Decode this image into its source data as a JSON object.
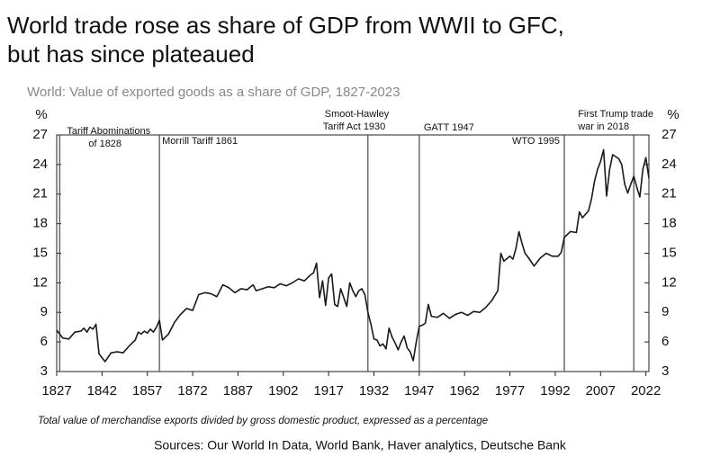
{
  "chart_data": {
    "type": "line",
    "title": [
      "World trade rose as share of GDP from WWII to GFC,",
      "but has since plateaued"
    ],
    "subtitle": "World: Value of exported goods as a share of GDP, 1827-2023",
    "y_label": "%",
    "y2_label": "%",
    "footnote": "Total value of merchandise exports divided by gross domestic product, expressed as a percentage",
    "source": "Sources: Our World In Data, World Bank, Haver analytics, Deutsche Bank",
    "xlim": [
      1827,
      2023
    ],
    "xticks": [
      1827,
      1842,
      1857,
      1872,
      1887,
      1902,
      1917,
      1932,
      1947,
      1962,
      1977,
      1992,
      2007,
      2022
    ],
    "ylim": [
      3,
      27
    ],
    "yticks": [
      3,
      6,
      9,
      12,
      15,
      18,
      21,
      24,
      27
    ],
    "y2lim": [
      3,
      27
    ],
    "y2ticks": [
      3,
      6,
      9,
      12,
      15,
      18,
      21,
      24,
      27
    ],
    "color": "#1a1a1a",
    "annotations": [
      {
        "text": [
          "Tariff Abominations",
          "of 1828"
        ],
        "x": 1828
      },
      {
        "text": [
          "Morrill Tariff 1861"
        ],
        "x": 1861
      },
      {
        "text": [
          "Smoot-Hawley",
          "Tariff Act 1930"
        ],
        "x": 1930
      },
      {
        "text": [
          "GATT 1947"
        ],
        "x": 1947
      },
      {
        "text": [
          "WTO 1995"
        ],
        "x": 1995
      },
      {
        "text": [
          "First Trump trade",
          "war in 2018"
        ],
        "x": 2018
      }
    ],
    "x": [
      1827,
      1829,
      1831,
      1833,
      1835,
      1836,
      1837,
      1838,
      1839,
      1840,
      1841,
      1843,
      1845,
      1847,
      1849,
      1851,
      1853,
      1854,
      1855,
      1856,
      1857,
      1858,
      1859,
      1860,
      1861,
      1862,
      1864,
      1866,
      1868,
      1870,
      1872,
      1874,
      1876,
      1878,
      1880,
      1882,
      1884,
      1886,
      1888,
      1890,
      1892,
      1893,
      1895,
      1897,
      1899,
      1901,
      1903,
      1905,
      1907,
      1909,
      1911,
      1912,
      1913,
      1914,
      1915,
      1916,
      1917,
      1918,
      1919,
      1920,
      1921,
      1922,
      1923,
      1924,
      1925,
      1926,
      1927,
      1928,
      1929,
      1930,
      1931,
      1932,
      1933,
      1934,
      1935,
      1936,
      1937,
      1938,
      1939,
      1940,
      1941,
      1942,
      1943,
      1944,
      1945,
      1946,
      1947,
      1948,
      1949,
      1950,
      1951,
      1953,
      1955,
      1957,
      1959,
      1961,
      1963,
      1965,
      1967,
      1969,
      1971,
      1973,
      1974,
      1975,
      1977,
      1978,
      1979,
      1980,
      1981,
      1982,
      1983,
      1985,
      1987,
      1989,
      1991,
      1993,
      1994,
      1995,
      1997,
      1999,
      2000,
      2001,
      2003,
      2004,
      2005,
      2006,
      2007,
      2008,
      2009,
      2010,
      2011,
      2012,
      2013,
      2014,
      2015,
      2016,
      2017,
      2018,
      2019,
      2020,
      2021,
      2022,
      2023
    ],
    "values": [
      7.2,
      6.4,
      6.3,
      7.0,
      7.1,
      7.4,
      7.0,
      7.5,
      7.3,
      7.8,
      4.8,
      4.0,
      4.9,
      5.0,
      4.9,
      5.6,
      6.2,
      7.0,
      6.8,
      7.1,
      6.9,
      7.3,
      7.0,
      7.5,
      8.2,
      6.2,
      6.8,
      8.0,
      8.8,
      9.4,
      9.2,
      10.8,
      11.0,
      10.9,
      10.6,
      11.8,
      11.5,
      11.0,
      11.4,
      11.3,
      11.8,
      11.2,
      11.4,
      11.6,
      11.5,
      11.9,
      11.7,
      12.0,
      12.4,
      12.2,
      12.8,
      13.0,
      14.0,
      10.5,
      12.2,
      9.7,
      12.5,
      12.9,
      9.8,
      9.6,
      11.4,
      10.5,
      9.6,
      12.0,
      11.2,
      10.6,
      11.2,
      11.4,
      10.8,
      9.0,
      7.8,
      6.3,
      6.2,
      5.6,
      5.8,
      5.3,
      7.4,
      6.5,
      5.9,
      5.2,
      6.0,
      6.6,
      5.4,
      5.0,
      4.1,
      6.0,
      7.6,
      7.7,
      7.9,
      9.8,
      8.6,
      8.5,
      8.9,
      8.4,
      8.8,
      9.0,
      8.7,
      9.1,
      9.0,
      9.5,
      10.2,
      11.2,
      15.0,
      14.2,
      14.7,
      14.4,
      15.5,
      17.2,
      16.0,
      15.0,
      14.6,
      13.7,
      14.5,
      15.0,
      14.7,
      14.7,
      15.1,
      16.6,
      17.2,
      17.1,
      19.2,
      18.6,
      19.3,
      20.5,
      22.3,
      23.5,
      24.3,
      25.5,
      20.8,
      23.5,
      25.0,
      24.8,
      24.6,
      24.0,
      22.0,
      21.1,
      22.0,
      22.8,
      21.7,
      20.7,
      23.5,
      24.7,
      22.6
    ]
  }
}
